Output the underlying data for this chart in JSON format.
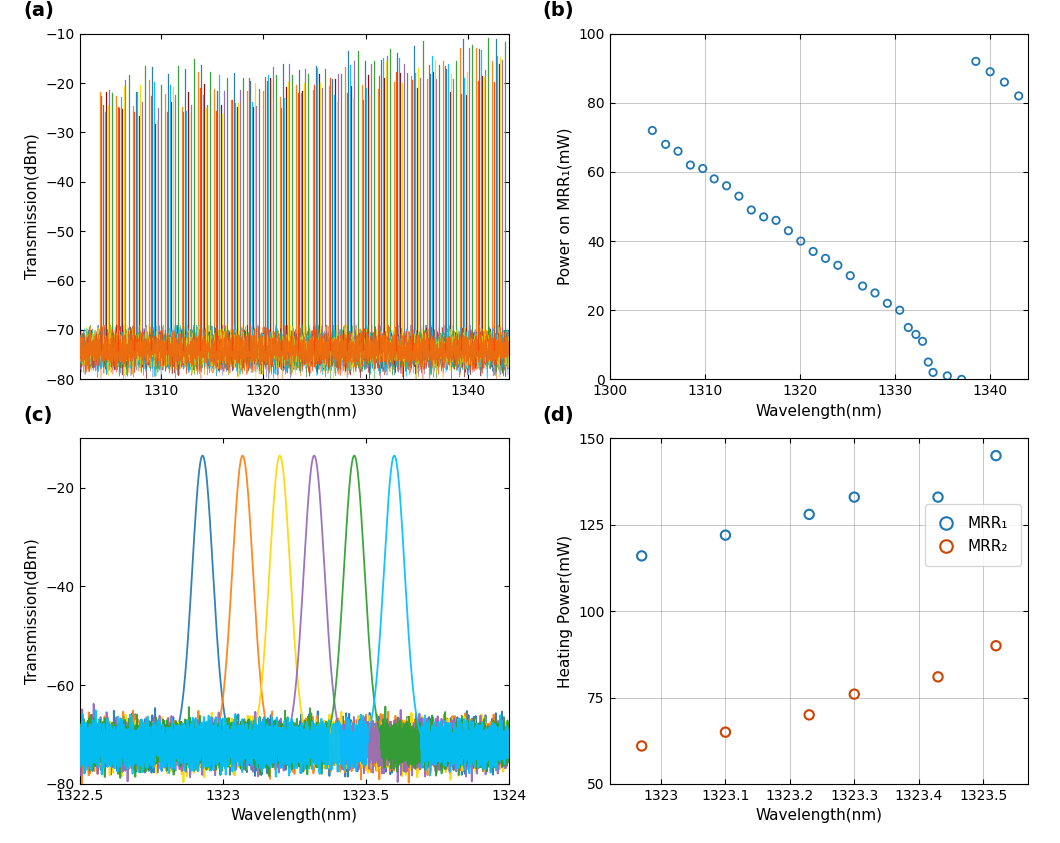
{
  "panel_labels": [
    "(a)",
    "(b)",
    "(c)",
    "(d)"
  ],
  "panel_a": {
    "xlim": [
      1302,
      1344
    ],
    "ylim": [
      -80,
      -10
    ],
    "xlabel": "Wavelength(nm)",
    "ylabel": "Transmission(dBm)",
    "xticks": [
      1310,
      1320,
      1330,
      1340
    ],
    "yticks": [
      -80,
      -70,
      -60,
      -50,
      -40,
      -30,
      -20,
      -10
    ],
    "colors": [
      "#FF7F0E",
      "#1F77B4",
      "#8B0000",
      "#9467BD",
      "#2CA02C",
      "#00BFFF",
      "#FFD700",
      "#FF4500"
    ],
    "noise_floor": -74,
    "fsr": 1.6,
    "offsets": [
      0.0,
      0.3,
      0.6,
      0.9,
      1.2,
      0.45,
      0.75,
      0.15
    ],
    "heights": [
      -23,
      -22,
      -26,
      -24,
      -21,
      -24,
      -25,
      -26
    ]
  },
  "panel_b": {
    "xlim": [
      1300,
      1344
    ],
    "ylim": [
      0,
      100
    ],
    "xlabel": "Wavelength(nm)",
    "ylabel": "Power on MRR₁(mW)",
    "xticks": [
      1300,
      1310,
      1320,
      1330,
      1340
    ],
    "yticks": [
      0,
      20,
      40,
      60,
      80,
      100
    ],
    "color": "#1F77B4",
    "wavelengths": [
      1304.5,
      1305.9,
      1307.2,
      1308.5,
      1309.8,
      1311.0,
      1312.3,
      1313.6,
      1314.9,
      1316.2,
      1317.5,
      1318.8,
      1320.1,
      1321.4,
      1322.7,
      1324.0,
      1325.3,
      1326.6,
      1327.9,
      1329.2,
      1330.5,
      1331.4,
      1332.2,
      1332.9,
      1333.5,
      1334.0,
      1335.5,
      1337.0,
      1338.5,
      1340.0,
      1341.5,
      1343.0
    ],
    "powers": [
      72,
      68,
      66,
      62,
      61,
      58,
      56,
      53,
      49,
      47,
      46,
      43,
      40,
      37,
      35,
      33,
      30,
      27,
      25,
      22,
      20,
      15,
      13,
      11,
      5,
      2,
      1,
      0,
      92,
      89,
      86,
      82
    ]
  },
  "panel_c": {
    "xlim": [
      1322.5,
      1324.0
    ],
    "ylim": [
      -80,
      -10
    ],
    "xlabel": "Wavelength(nm)",
    "ylabel": "Transmission(dBm)",
    "xticks": [
      1322.5,
      1323.0,
      1323.5,
      1324.0
    ],
    "xtick_labels": [
      "1322.5",
      "1323",
      "1323.5",
      "1324"
    ],
    "yticks": [
      -80,
      -60,
      -40,
      -20
    ],
    "colors": [
      "#1F77B4",
      "#FF7F0E",
      "#FFD700",
      "#9467BD",
      "#2CA02C",
      "#00BFFF"
    ],
    "peak_centers": [
      1322.93,
      1323.07,
      1323.2,
      1323.32,
      1323.46,
      1323.6
    ],
    "peak_top": -13.5,
    "peak_sigma": 0.036,
    "noise_floor": -72,
    "noise_std": 2.0
  },
  "panel_d": {
    "xlim": [
      1322.92,
      1323.57
    ],
    "ylim": [
      50,
      150
    ],
    "xlabel": "Wavelength(nm)",
    "ylabel": "Heating Power(mW)",
    "xticks": [
      1323.0,
      1323.1,
      1323.2,
      1323.3,
      1323.4,
      1323.5
    ],
    "xtick_labels": [
      "1323",
      "1323.1",
      "1323.2",
      "1323.3",
      "1323.4",
      "1323.5"
    ],
    "yticks": [
      50,
      75,
      100,
      125,
      150
    ],
    "color_mrr1": "#1F77B4",
    "color_mrr2": "#CC4400",
    "mrr1_wavelengths": [
      1322.97,
      1323.1,
      1323.23,
      1323.3,
      1323.43,
      1323.52
    ],
    "mrr1_powers": [
      116,
      122,
      128,
      133,
      133,
      145
    ],
    "mrr2_wavelengths": [
      1322.97,
      1323.1,
      1323.23,
      1323.3,
      1323.43,
      1323.52
    ],
    "mrr2_powers": [
      61,
      65,
      70,
      76,
      81,
      90
    ],
    "legend_labels": [
      "MRR₁",
      "MRR₂"
    ]
  }
}
